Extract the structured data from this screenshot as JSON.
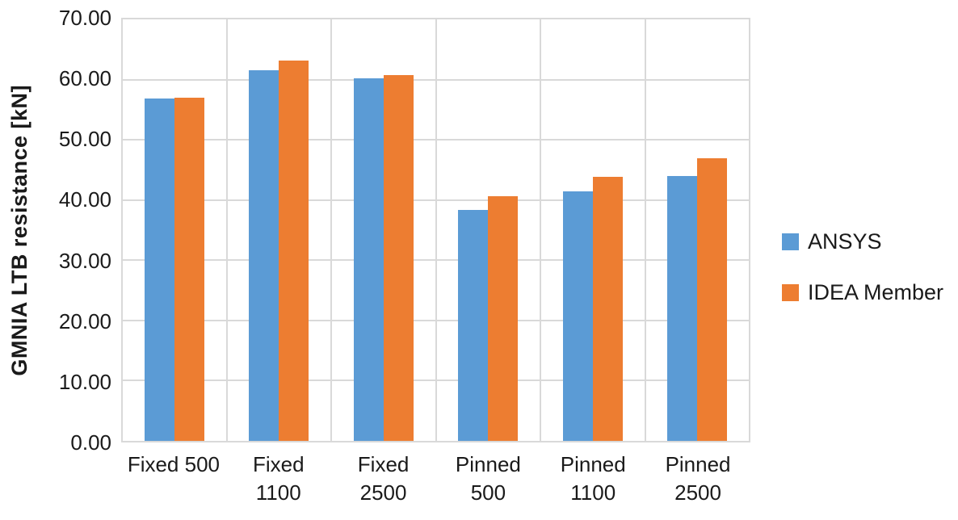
{
  "colors": {
    "ansys_blue": "#5B9BD5",
    "idea_orange": "#ED7D31",
    "gridline_gray": "#D9D9D9",
    "text": "#1a1a1a",
    "background": "#FFFFFF"
  },
  "chart_data": {
    "type": "bar",
    "title": "",
    "xlabel": "",
    "ylabel": "GMNIA LTB resistance [kN]",
    "ylim": [
      0,
      70
    ],
    "ytick_step": 10,
    "ytick_labels": [
      "0.00",
      "10.00",
      "20.00",
      "30.00",
      "40.00",
      "50.00",
      "60.00",
      "70.00"
    ],
    "grid": true,
    "legend_position": "right",
    "categories": [
      "Fixed 500",
      "Fixed 1100",
      "Fixed 2500",
      "Pinned 500",
      "Pinned 1100",
      "Pinned 2500"
    ],
    "category_label_lines": [
      [
        "Fixed 500"
      ],
      [
        "Fixed",
        "1100"
      ],
      [
        "Fixed",
        "2500"
      ],
      [
        "Pinned",
        "500"
      ],
      [
        "Pinned",
        "1100"
      ],
      [
        "Pinned",
        "2500"
      ]
    ],
    "series": [
      {
        "name": "ANSYS",
        "color": "#5B9BD5",
        "values": [
          56.8,
          61.5,
          60.2,
          38.3,
          41.4,
          44.0
        ]
      },
      {
        "name": "IDEA Member",
        "color": "#ED7D31",
        "values": [
          57.0,
          63.1,
          60.8,
          40.7,
          43.8,
          47.0
        ]
      }
    ]
  }
}
